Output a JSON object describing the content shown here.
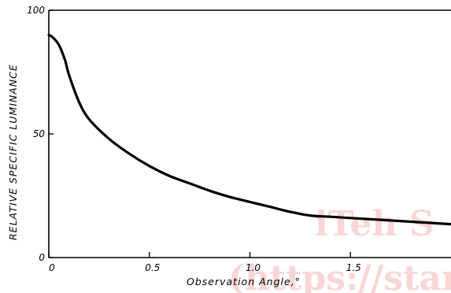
{
  "chart_data": {
    "type": "line",
    "title": "",
    "xlabel": "Observation Angle,°",
    "ylabel": "RELATIVE SPECIFIC LUMINANCE",
    "xlim": [
      0,
      2.0
    ],
    "ylim": [
      0,
      100
    ],
    "grid": false,
    "x_ticks": [
      0,
      0.5,
      1.0,
      1.5
    ],
    "x_tick_labels": [
      "0",
      "0.5",
      "1.0",
      "1.5"
    ],
    "y_ticks": [
      0,
      50,
      100
    ],
    "y_tick_labels": [
      "0",
      "50",
      "100"
    ],
    "reference_line": {
      "y": 100
    },
    "series": [
      {
        "values": [
          [
            0.0,
            90
          ],
          [
            0.02,
            89
          ],
          [
            0.05,
            86
          ],
          [
            0.08,
            80
          ],
          [
            0.1,
            74
          ],
          [
            0.15,
            63
          ],
          [
            0.2,
            56
          ],
          [
            0.3,
            48
          ],
          [
            0.4,
            42
          ],
          [
            0.5,
            37
          ],
          [
            0.6,
            33
          ],
          [
            0.7,
            30
          ],
          [
            0.8,
            27
          ],
          [
            0.9,
            24.5
          ],
          [
            1.0,
            22.5
          ],
          [
            1.1,
            20.5
          ],
          [
            1.2,
            18.5
          ],
          [
            1.3,
            17
          ],
          [
            1.4,
            16.5
          ],
          [
            1.5,
            16
          ],
          [
            1.6,
            15.5
          ],
          [
            1.7,
            15
          ],
          [
            1.8,
            14.5
          ],
          [
            1.9,
            14
          ],
          [
            2.0,
            13.5
          ]
        ]
      }
    ],
    "colors": {
      "line": "#000000",
      "watermark": "#f6c9c9"
    }
  },
  "watermark": {
    "line1": "iTeh S",
    "line2": "(https://star"
  }
}
